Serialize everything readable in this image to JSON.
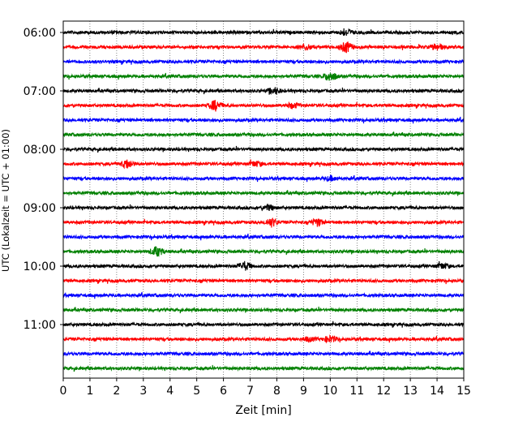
{
  "chart_data": {
    "type": "line",
    "title": "",
    "xlabel": "Zeit  [min]",
    "ylabel": "UTC (Lokalzeit = UTC + 01:00)",
    "xlim": [
      0,
      15
    ],
    "x_ticks": [
      0,
      1,
      2,
      3,
      4,
      5,
      6,
      7,
      8,
      9,
      10,
      11,
      12,
      13,
      14,
      15
    ],
    "y_tick_labels": [
      "06:00",
      "07:00",
      "08:00",
      "09:00",
      "10:00",
      "11:00"
    ],
    "grid": "vertical dotted lines at each minute",
    "legend": "none",
    "trace_start_times": [
      "06:00",
      "06:15",
      "06:30",
      "06:45",
      "07:00",
      "07:15",
      "07:30",
      "07:45",
      "08:00",
      "08:15",
      "08:30",
      "08:45",
      "09:00",
      "09:15",
      "09:30",
      "09:45",
      "10:00",
      "10:15",
      "10:30",
      "10:45",
      "11:00",
      "11:15",
      "11:30",
      "11:45"
    ],
    "trace_colors": [
      "#000000",
      "#ff0000",
      "#0000ff",
      "#008000"
    ],
    "events": [
      {
        "trace_start": "06:00",
        "minute": 10.6,
        "amplitude": 0.6
      },
      {
        "trace_start": "06:15",
        "minute": 10.6,
        "amplitude": 1.0
      },
      {
        "trace_start": "06:15",
        "minute": 9.1,
        "amplitude": 0.5
      },
      {
        "trace_start": "06:15",
        "minute": 14.0,
        "amplitude": 0.6
      },
      {
        "trace_start": "06:45",
        "minute": 10.0,
        "amplitude": 0.9
      },
      {
        "trace_start": "07:00",
        "minute": 7.9,
        "amplitude": 0.6
      },
      {
        "trace_start": "07:15",
        "minute": 5.7,
        "amplitude": 1.0
      },
      {
        "trace_start": "07:15",
        "minute": 8.6,
        "amplitude": 0.5
      },
      {
        "trace_start": "08:15",
        "minute": 2.4,
        "amplitude": 0.8
      },
      {
        "trace_start": "08:15",
        "minute": 7.2,
        "amplitude": 0.5
      },
      {
        "trace_start": "08:30",
        "minute": 10.0,
        "amplitude": 0.4
      },
      {
        "trace_start": "09:00",
        "minute": 7.7,
        "amplitude": 0.5
      },
      {
        "trace_start": "09:15",
        "minute": 7.8,
        "amplitude": 0.8
      },
      {
        "trace_start": "09:15",
        "minute": 9.5,
        "amplitude": 0.7
      },
      {
        "trace_start": "09:45",
        "minute": 3.5,
        "amplitude": 0.9
      },
      {
        "trace_start": "10:00",
        "minute": 6.8,
        "amplitude": 0.8
      },
      {
        "trace_start": "10:00",
        "minute": 14.2,
        "amplitude": 0.5
      },
      {
        "trace_start": "11:15",
        "minute": 10.0,
        "amplitude": 0.6
      },
      {
        "trace_start": "11:15",
        "minute": 9.2,
        "amplitude": 0.4
      }
    ]
  }
}
